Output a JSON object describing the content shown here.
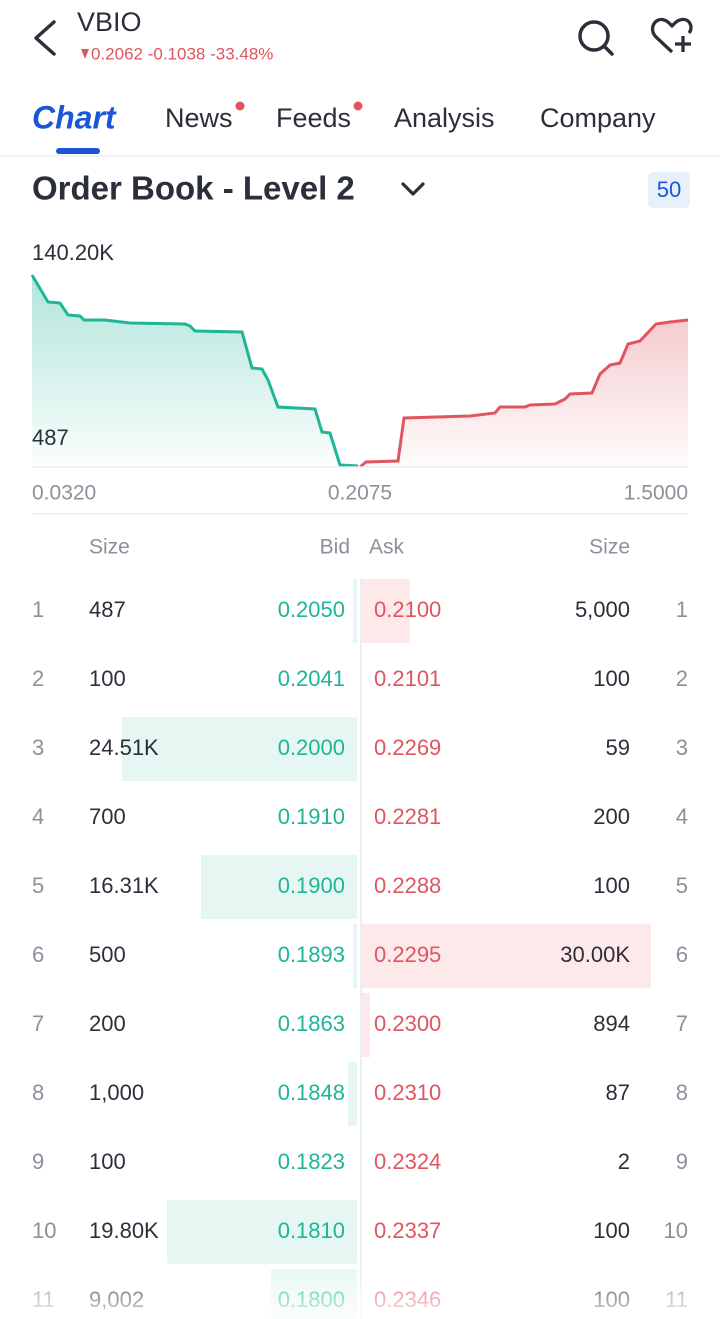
{
  "header": {
    "symbol": "VBIO",
    "quote": "0.2062 -0.1038 -33.48%"
  },
  "tabs": [
    "Chart",
    "News",
    "Feeds",
    "Analysis",
    "Company"
  ],
  "section": {
    "title": "Order Book - Level 2",
    "depth": "50"
  },
  "depth_chart": {
    "y_max": "140.20K",
    "y_min": "487",
    "x_labels": [
      "0.0320",
      "0.2075",
      "1.5000"
    ]
  },
  "table": {
    "columns": [
      "Size",
      "Bid",
      "Ask",
      "Size"
    ],
    "rows": [
      [
        1,
        "487",
        "0.2050",
        "0.2100",
        "5,000"
      ],
      [
        2,
        "100",
        "0.2041",
        "0.2101",
        "100"
      ],
      [
        3,
        "24.51K",
        "0.2000",
        "0.2269",
        "59"
      ],
      [
        4,
        "700",
        "0.1910",
        "0.2281",
        "200"
      ],
      [
        5,
        "16.31K",
        "0.1900",
        "0.2288",
        "100"
      ],
      [
        6,
        "500",
        "0.1893",
        "0.2295",
        "30.00K"
      ],
      [
        7,
        "200",
        "0.1863",
        "0.2300",
        "894"
      ],
      [
        8,
        "1,000",
        "0.1848",
        "0.2310",
        "87"
      ],
      [
        9,
        "100",
        "0.1823",
        "0.2324",
        "2"
      ],
      [
        10,
        "19.80K",
        "0.1810",
        "0.2337",
        "100"
      ],
      [
        11,
        "9,002",
        "0.1800",
        "0.2346",
        "100"
      ]
    ]
  }
}
